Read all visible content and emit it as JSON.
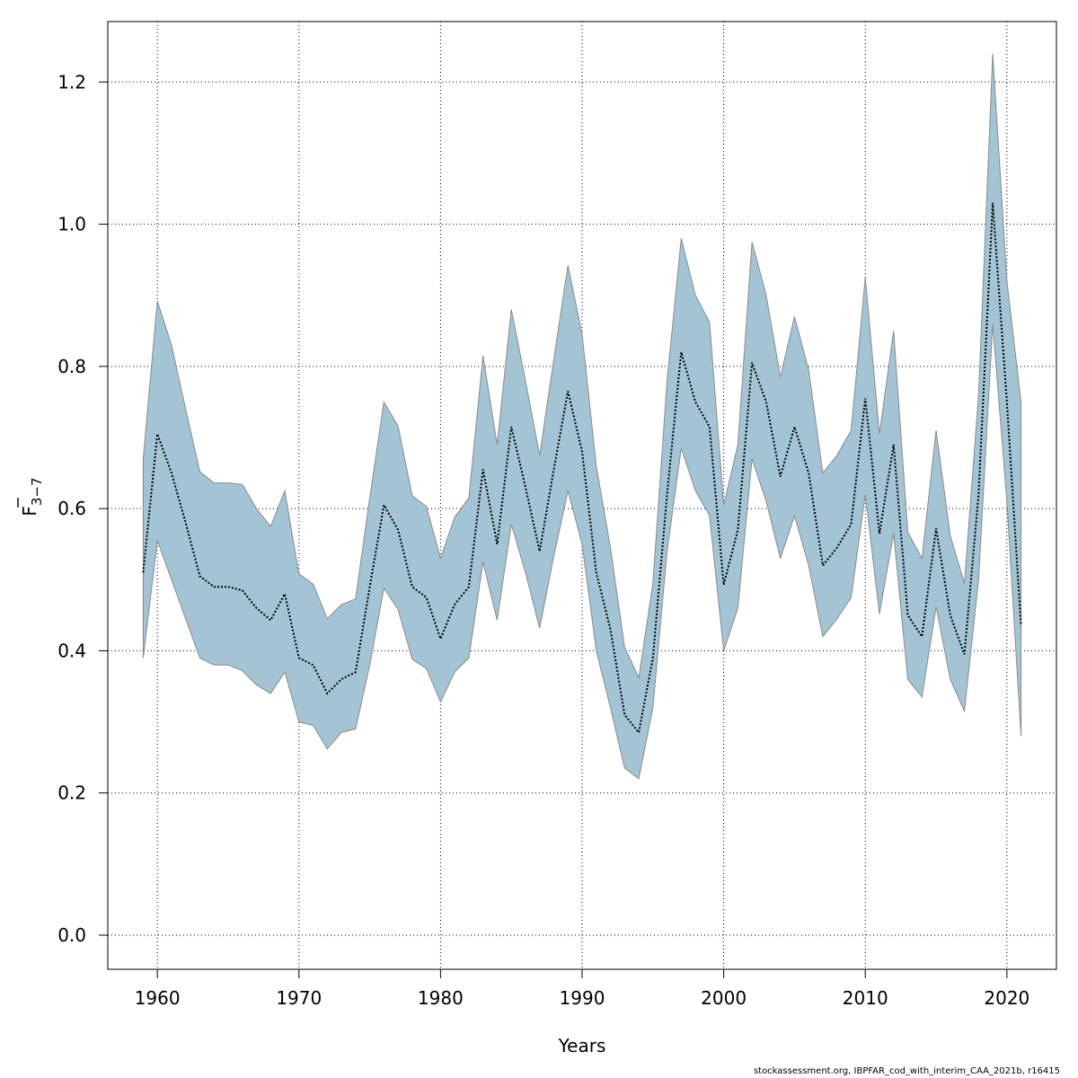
{
  "chart_data": {
    "type": "area",
    "xlabel": "Years",
    "ylabel": {
      "base": "F",
      "subscript": "3−7"
    },
    "xlim": [
      1956.5,
      2023.5
    ],
    "ylim": [
      -0.048,
      1.285
    ],
    "xticks": [
      1960,
      1970,
      1980,
      1990,
      2000,
      2010,
      2020
    ],
    "yticks": [
      0.0,
      0.2,
      0.4,
      0.6,
      0.8,
      1.0,
      1.2
    ],
    "ytick_labels": [
      "0.0",
      "0.2",
      "0.4",
      "0.6",
      "0.8",
      "1.0",
      "1.2"
    ],
    "grid": true,
    "colors": {
      "band": "#a3c4d5",
      "band_edge": "#8a8a8a",
      "line": "#000000",
      "grid": "#000000"
    },
    "x": [
      1959,
      1960,
      1961,
      1962,
      1963,
      1964,
      1965,
      1966,
      1967,
      1968,
      1969,
      1970,
      1971,
      1972,
      1973,
      1974,
      1975,
      1976,
      1977,
      1978,
      1979,
      1980,
      1981,
      1982,
      1983,
      1984,
      1985,
      1986,
      1987,
      1988,
      1989,
      1990,
      1991,
      1992,
      1993,
      1994,
      1995,
      1996,
      1997,
      1998,
      1999,
      2000,
      2001,
      2002,
      2003,
      2004,
      2005,
      2006,
      2007,
      2008,
      2009,
      2010,
      2011,
      2012,
      2013,
      2014,
      2015,
      2016,
      2017,
      2018,
      2019,
      2020,
      2021
    ],
    "series": [
      {
        "values": [
          0.51,
          0.705,
          0.65,
          0.58,
          0.505,
          0.49,
          0.49,
          0.485,
          0.46,
          0.443,
          0.48,
          0.39,
          0.38,
          0.34,
          0.36,
          0.37,
          0.49,
          0.605,
          0.57,
          0.49,
          0.475,
          0.417,
          0.465,
          0.49,
          0.655,
          0.55,
          0.715,
          0.63,
          0.54,
          0.655,
          0.765,
          0.68,
          0.51,
          0.43,
          0.31,
          0.285,
          0.39,
          0.62,
          0.82,
          0.75,
          0.715,
          0.493,
          0.57,
          0.805,
          0.75,
          0.645,
          0.715,
          0.65,
          0.52,
          0.545,
          0.578,
          0.755,
          0.565,
          0.69,
          0.45,
          0.42,
          0.572,
          0.45,
          0.395,
          0.62,
          1.03,
          0.75,
          0.435
        ],
        "lower": [
          0.39,
          0.555,
          0.5,
          0.445,
          0.39,
          0.38,
          0.38,
          0.372,
          0.352,
          0.34,
          0.37,
          0.3,
          0.295,
          0.262,
          0.285,
          0.29,
          0.38,
          0.488,
          0.458,
          0.388,
          0.375,
          0.328,
          0.37,
          0.39,
          0.525,
          0.443,
          0.578,
          0.51,
          0.432,
          0.533,
          0.625,
          0.55,
          0.4,
          0.32,
          0.235,
          0.22,
          0.32,
          0.54,
          0.685,
          0.625,
          0.59,
          0.4,
          0.46,
          0.67,
          0.61,
          0.53,
          0.59,
          0.52,
          0.42,
          0.445,
          0.475,
          0.62,
          0.452,
          0.565,
          0.36,
          0.335,
          0.462,
          0.36,
          0.315,
          0.5,
          0.86,
          0.61,
          0.28
        ],
        "upper": [
          0.67,
          0.892,
          0.83,
          0.74,
          0.652,
          0.636,
          0.636,
          0.634,
          0.6,
          0.575,
          0.625,
          0.508,
          0.494,
          0.445,
          0.465,
          0.473,
          0.615,
          0.75,
          0.716,
          0.618,
          0.603,
          0.53,
          0.588,
          0.615,
          0.815,
          0.69,
          0.88,
          0.78,
          0.675,
          0.81,
          0.942,
          0.845,
          0.66,
          0.545,
          0.405,
          0.362,
          0.495,
          0.78,
          0.98,
          0.9,
          0.862,
          0.605,
          0.69,
          0.975,
          0.9,
          0.785,
          0.87,
          0.795,
          0.65,
          0.675,
          0.71,
          0.925,
          0.705,
          0.85,
          0.567,
          0.53,
          0.71,
          0.562,
          0.495,
          0.76,
          1.24,
          0.92,
          0.75
        ]
      }
    ]
  },
  "footer": "stockassessment.org, IBPFAR_cod_with_interim_CAA_2021b, r16415"
}
